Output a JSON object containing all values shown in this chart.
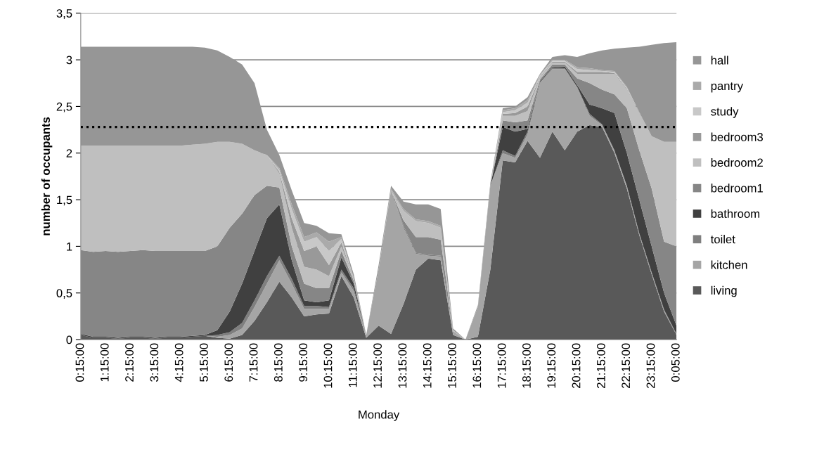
{
  "chart_data": {
    "type": "area",
    "stacked": true,
    "xlabel": "Monday",
    "ylabel": "number of occupants",
    "categories": [
      "0:15:00",
      null,
      "1:15:00",
      null,
      "2:15:00",
      null,
      "3:15:00",
      null,
      "4:15:00",
      null,
      "5:15:00",
      null,
      "6:15:00",
      null,
      "7:15:00",
      null,
      "8:15:00",
      null,
      "9:15:00",
      null,
      "10:15:00",
      null,
      "11:15:00",
      null,
      "12:15:00",
      null,
      "13:15:00",
      null,
      "14:15:00",
      null,
      "15:15:00",
      null,
      "16:15:00",
      null,
      "17:15:00",
      null,
      "18:15:00",
      null,
      "19:15:00",
      null,
      "20:15:00",
      null,
      "21:15:00",
      null,
      "22:15:00",
      null,
      "23:15:00",
      null,
      "0:05:00"
    ],
    "ylim": [
      0,
      3.5
    ],
    "yticks": [
      0,
      {
        "value": 0.5,
        "label": "0,5"
      },
      1,
      {
        "value": 1.5,
        "label": "1,5"
      },
      2,
      {
        "value": 2.5,
        "label": "2,5"
      },
      3,
      {
        "value": 3.5,
        "label": "3,5"
      }
    ],
    "grid": "y",
    "legend": "right",
    "ref_lines": [
      {
        "axis": "y",
        "value": 2.28,
        "color": "#000000",
        "line_style": "dotted"
      }
    ],
    "series": [
      {
        "name": "living",
        "color": "#595959",
        "values": [
          0.05,
          0.02,
          0.02,
          0.01,
          0.02,
          0.02,
          0.01,
          0.02,
          0.02,
          0.03,
          0.04,
          0.02,
          0.01,
          0.05,
          0.2,
          0.4,
          0.62,
          0.45,
          0.25,
          0.27,
          0.28,
          0.68,
          0.45,
          0.02,
          0.15,
          0.06,
          0.38,
          0.75,
          0.87,
          0.85,
          0.05,
          0,
          0.03,
          0.75,
          1.92,
          1.9,
          2.13,
          1.95,
          2.23,
          2.03,
          2.23,
          2.3,
          2.28,
          2.0,
          1.62,
          1.12,
          0.7,
          0.3,
          0.05
        ]
      },
      {
        "name": "kitchen",
        "color": "#a5a5a5",
        "values": [
          0,
          0,
          0,
          0,
          0,
          0,
          0,
          0,
          0,
          0,
          0,
          0.01,
          0.04,
          0.07,
          0.15,
          0.2,
          0.23,
          0.15,
          0.08,
          0.06,
          0.05,
          0.04,
          0.07,
          0.03,
          0.6,
          1.54,
          0.82,
          0.17,
          0.03,
          0.04,
          0.03,
          0,
          0.32,
          0.9,
          0.08,
          0.05,
          0.07,
          0.8,
          0.67,
          0.87,
          0.47,
          0.1,
          0.02,
          0.02,
          0.02,
          0.01,
          0.01,
          0.01,
          0
        ]
      },
      {
        "name": "toilet",
        "color": "#7f7f7f",
        "values": [
          0,
          0,
          0,
          0,
          0,
          0,
          0,
          0,
          0,
          0,
          0,
          0.02,
          0.03,
          0.06,
          0.07,
          0.08,
          0.05,
          0.05,
          0.03,
          0.03,
          0.02,
          0.03,
          0.03,
          0,
          0,
          0,
          0.02,
          0.01,
          0.01,
          0.01,
          0,
          0,
          0,
          0,
          0.03,
          0.02,
          0.03,
          0.01,
          0.02,
          0.01,
          0.01,
          0.02,
          0.01,
          0.01,
          0.01,
          0.01,
          0.01,
          0.01,
          0.01
        ]
      },
      {
        "name": "bathroom",
        "color": "#404040",
        "values": [
          0.01,
          0.01,
          0.01,
          0.01,
          0.01,
          0.01,
          0.01,
          0.01,
          0.01,
          0.01,
          0.01,
          0.05,
          0.22,
          0.42,
          0.53,
          0.62,
          0.55,
          0.2,
          0.06,
          0.04,
          0.07,
          0.13,
          0.05,
          0,
          0,
          0,
          0,
          0,
          0,
          0,
          0,
          0,
          0,
          0,
          0.25,
          0.26,
          0.03,
          0.01,
          0.01,
          0.02,
          0.02,
          0.1,
          0.17,
          0.4,
          0.35,
          0.36,
          0.28,
          0.18,
          0.09
        ]
      },
      {
        "name": "bedroom1",
        "color": "#868686",
        "values": [
          0.9,
          0.91,
          0.92,
          0.92,
          0.92,
          0.93,
          0.93,
          0.92,
          0.92,
          0.91,
          0.9,
          0.9,
          0.9,
          0.75,
          0.6,
          0.35,
          0.18,
          0.15,
          0.18,
          0.15,
          0.13,
          0.07,
          0.03,
          0,
          0,
          0,
          0.06,
          0.17,
          0.19,
          0.17,
          0.01,
          0,
          0,
          0,
          0.07,
          0.1,
          0.09,
          0.02,
          0.02,
          0.02,
          0.07,
          0.23,
          0.2,
          0.2,
          0.48,
          0.53,
          0.62,
          0.55,
          0.85
        ]
      },
      {
        "name": "bedroom2",
        "color": "#bfbfbf",
        "values": [
          1.12,
          1.14,
          1.13,
          1.14,
          1.13,
          1.12,
          1.13,
          1.13,
          1.13,
          1.14,
          1.15,
          1.12,
          0.92,
          0.75,
          0.48,
          0.33,
          0.15,
          0.2,
          0.18,
          0.2,
          0.13,
          0.05,
          0.03,
          0,
          0,
          0,
          0.1,
          0.17,
          0.15,
          0.13,
          0.01,
          0,
          0,
          0,
          0.05,
          0.07,
          0.1,
          0.02,
          0.02,
          0.02,
          0.05,
          0.1,
          0.17,
          0.22,
          0.2,
          0.4,
          0.56,
          1.07,
          1.12
        ]
      },
      {
        "name": "bedroom3",
        "color": "#999999",
        "values": [
          0,
          0,
          0,
          0,
          0,
          0,
          0,
          0,
          0,
          0,
          0,
          0,
          0,
          0,
          0,
          0,
          0.02,
          0.1,
          0.17,
          0.25,
          0.12,
          0.04,
          0,
          0,
          0,
          0,
          0,
          0,
          0,
          0,
          0,
          0,
          0,
          0,
          0.02,
          0.03,
          0.05,
          0.01,
          0.01,
          0.01,
          0.02,
          0.02,
          0.02,
          0.01,
          0.01,
          0.01,
          0,
          0,
          0
        ]
      },
      {
        "name": "study",
        "color": "#c8c8c8",
        "values": [
          0,
          0,
          0,
          0,
          0,
          0,
          0,
          0,
          0,
          0,
          0,
          0,
          0,
          0,
          0,
          0,
          0.02,
          0.1,
          0.1,
          0.1,
          0.15,
          0.04,
          0,
          0,
          0,
          0,
          0,
          0,
          0,
          0,
          0,
          0,
          0,
          0,
          0.02,
          0.03,
          0.04,
          0.01,
          0.01,
          0.01,
          0.03,
          0.02,
          0.01,
          0.01,
          0.01,
          0,
          0,
          0,
          0
        ]
      },
      {
        "name": "pantry",
        "color": "#aaaaaa",
        "values": [
          0,
          0,
          0,
          0,
          0,
          0,
          0,
          0,
          0,
          0,
          0,
          0,
          0,
          0,
          0,
          0,
          0.02,
          0.05,
          0.05,
          0.05,
          0.1,
          0.02,
          0,
          0,
          0,
          0.02,
          0.02,
          0.02,
          0.02,
          0.02,
          0,
          0,
          0,
          0,
          0.02,
          0.02,
          0.03,
          0.01,
          0.01,
          0.01,
          0.02,
          0.02,
          0.01,
          0.01,
          0.01,
          0,
          0,
          0,
          0
        ]
      },
      {
        "name": "hall",
        "color": "#969696",
        "values": [
          1.06,
          1.06,
          1.06,
          1.06,
          1.06,
          1.06,
          1.06,
          1.06,
          1.06,
          1.05,
          1.03,
          0.98,
          0.91,
          0.85,
          0.72,
          0.27,
          0.14,
          0.15,
          0.15,
          0.07,
          0.09,
          0.03,
          0.04,
          0,
          0.05,
          0.03,
          0.08,
          0.16,
          0.18,
          0.18,
          0.02,
          0,
          0.02,
          0.03,
          0.02,
          0.02,
          0.03,
          0.01,
          0.03,
          0.05,
          0.11,
          0.16,
          0.21,
          0.24,
          0.42,
          0.7,
          0.98,
          1.06,
          1.07
        ]
      }
    ]
  }
}
